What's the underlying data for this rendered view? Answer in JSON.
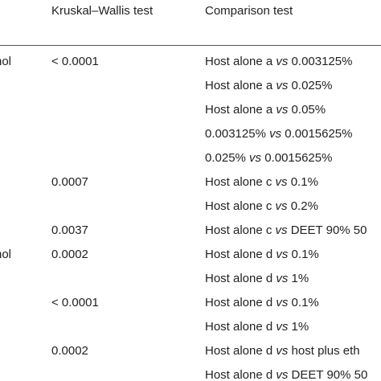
{
  "table": {
    "headers": [
      "",
      "Kruskal–Wallis test",
      "Comparison test"
    ],
    "rows": [
      {
        "label": "nol",
        "kw": "< 0.0001",
        "comp_a": "Host alone a ",
        "vs": "vs",
        "comp_b": " 0.003125%"
      },
      {
        "label": "",
        "kw": "",
        "comp_a": "Host alone a ",
        "vs": "vs",
        "comp_b": " 0.025%"
      },
      {
        "label": "",
        "kw": "",
        "comp_a": "Host alone a ",
        "vs": "vs",
        "comp_b": " 0.05%"
      },
      {
        "label": "",
        "kw": "",
        "comp_a": "0.003125% ",
        "vs": "vs",
        "comp_b": " 0.0015625%"
      },
      {
        "label": "",
        "kw": "",
        "comp_a": "0.025% ",
        "vs": "vs",
        "comp_b": " 0.0015625%"
      },
      {
        "label": "",
        "kw": "0.0007",
        "comp_a": "Host alone c ",
        "vs": "vs",
        "comp_b": " 0.1%"
      },
      {
        "label": "",
        "kw": "",
        "comp_a": "Host alone c ",
        "vs": "vs",
        "comp_b": " 0.2%"
      },
      {
        "label": "",
        "kw": "0.0037",
        "comp_a": "Host alone c ",
        "vs": "vs",
        "comp_b": " DEET 90% 50"
      },
      {
        "label": "nol",
        "kw": "0.0002",
        "comp_a": "Host alone d ",
        "vs": "vs",
        "comp_b": " 0.1%"
      },
      {
        "label": "",
        "kw": "",
        "comp_a": "Host alone d ",
        "vs": "vs",
        "comp_b": " 1%"
      },
      {
        "label": "",
        "kw": "< 0.0001",
        "comp_a": "Host alone d ",
        "vs": "vs",
        "comp_b": " 0.1%"
      },
      {
        "label": "",
        "kw": "",
        "comp_a": "Host alone d ",
        "vs": "vs",
        "comp_b": " 1%"
      },
      {
        "label": "",
        "kw": "0.0002",
        "comp_a": "Host alone d ",
        "vs": "vs",
        "comp_b": " host plus eth"
      },
      {
        "label": "",
        "kw": "",
        "comp_a": "Host alone d ",
        "vs": "vs",
        "comp_b": " DEET 90% 50"
      }
    ]
  }
}
